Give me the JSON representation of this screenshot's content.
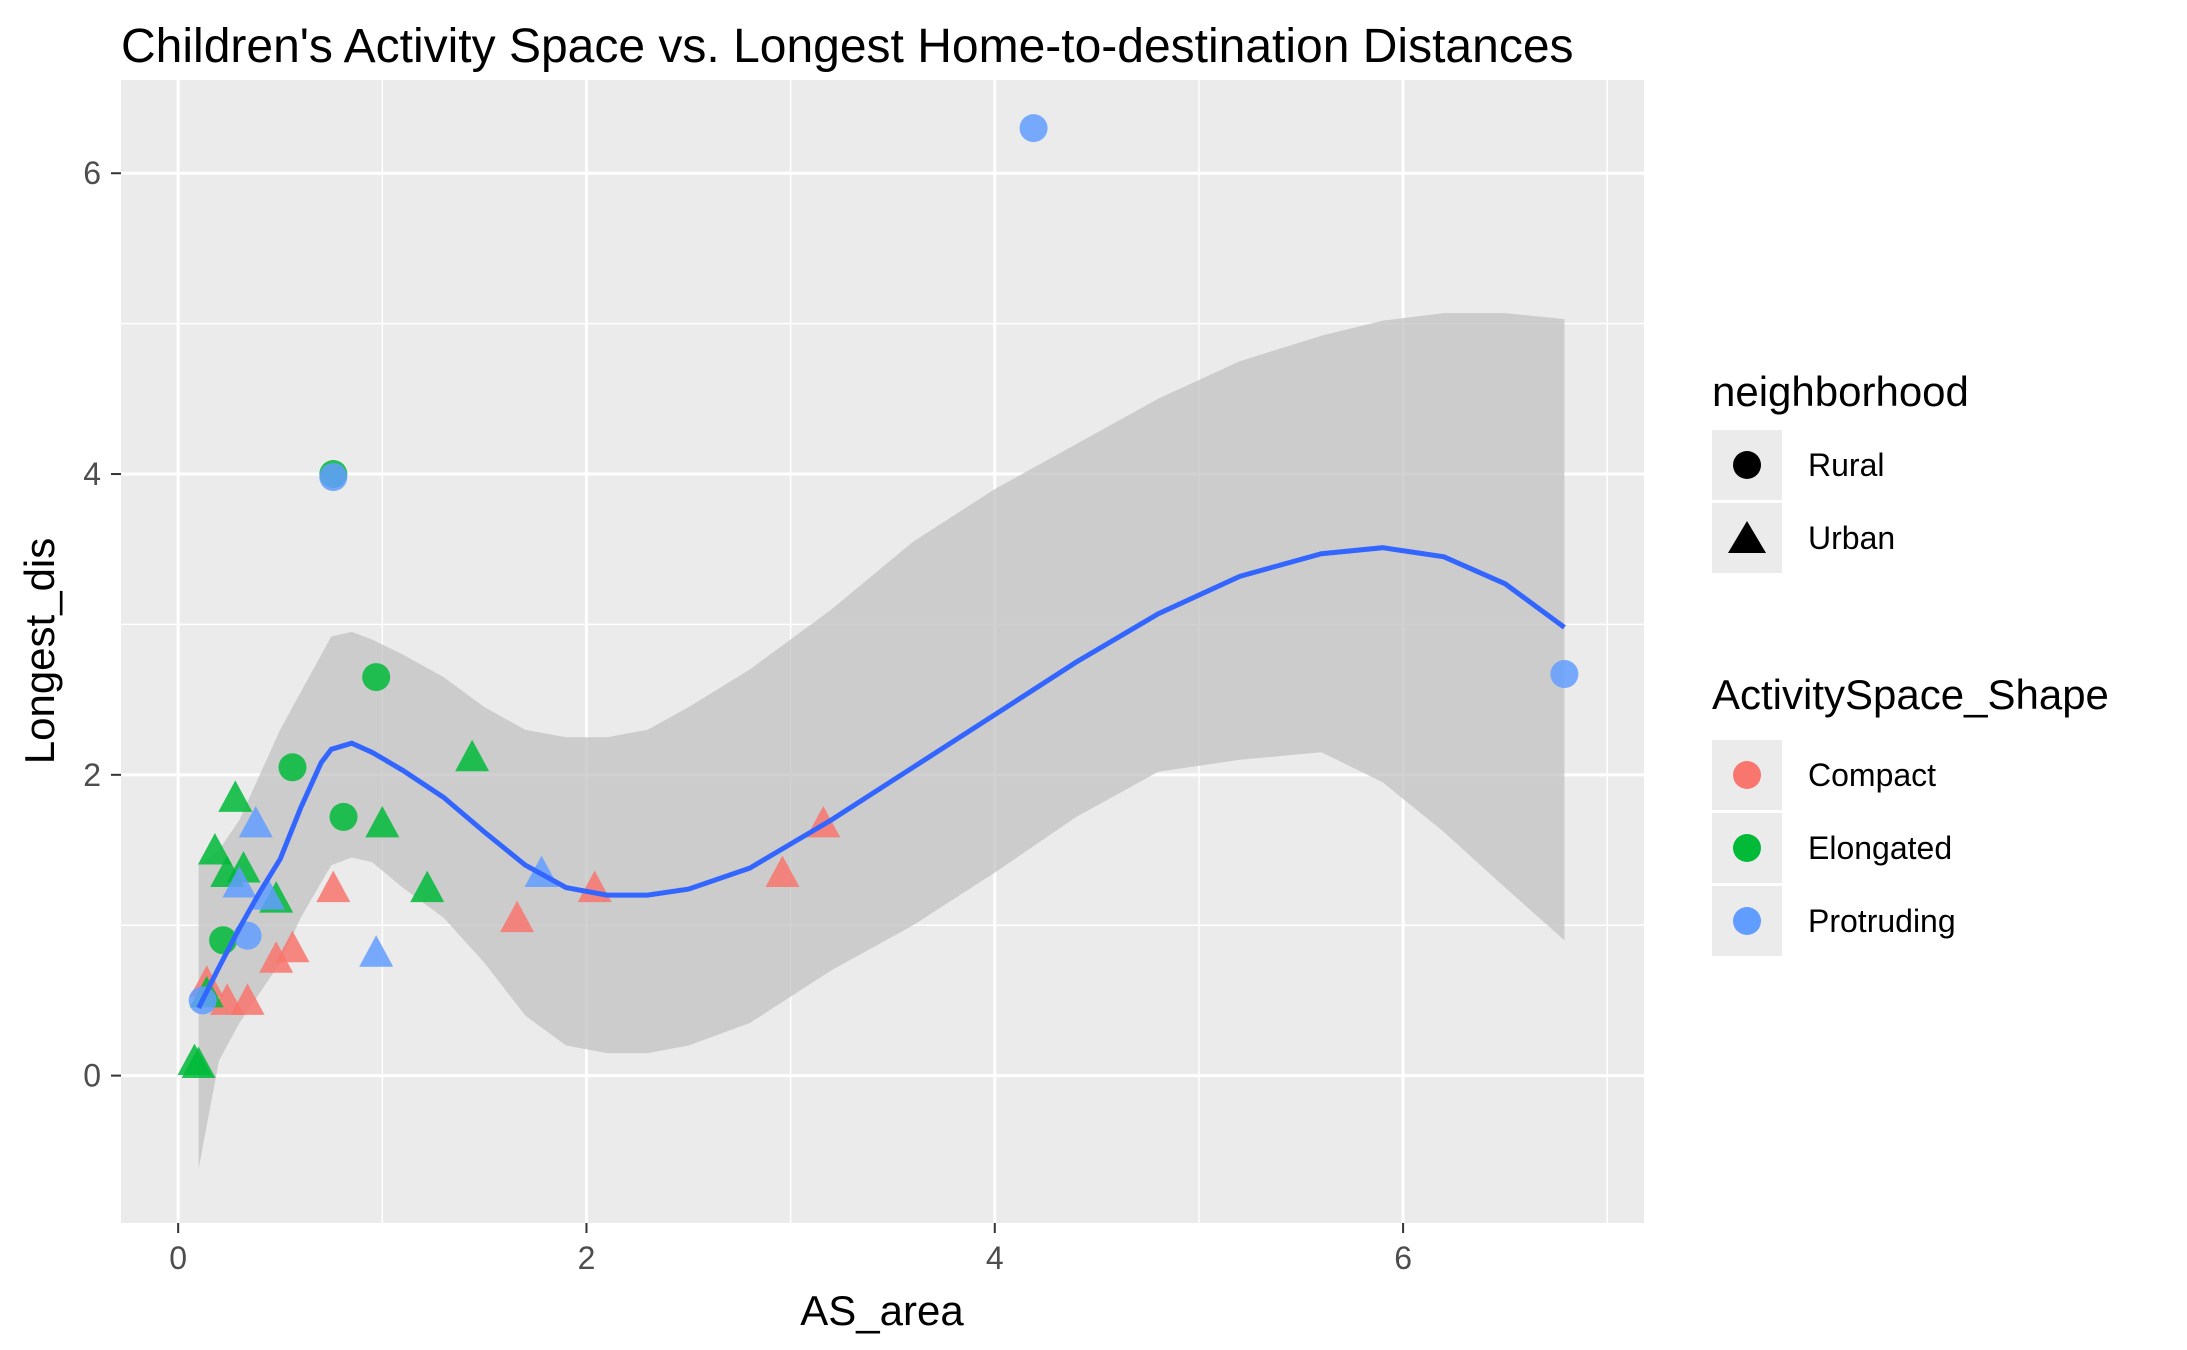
{
  "chart_data": {
    "type": "scatter",
    "title": "Children's Activity Space vs. Longest Home-to-destination Distances",
    "xlabel": "AS_area",
    "ylabel": "Longest_dis",
    "xlim": [
      -0.28,
      7.18
    ],
    "ylim": [
      -0.98,
      6.62
    ],
    "x_ticks": [
      0,
      2,
      4,
      6
    ],
    "y_ticks": [
      0,
      2,
      4,
      6
    ],
    "x_tick_labels": [
      "0",
      "2",
      "4",
      "6"
    ],
    "y_tick_labels": [
      "0",
      "2",
      "4",
      "6"
    ],
    "grid": true,
    "background_color": "#ebebeb",
    "legend_position": "right",
    "legends": [
      {
        "title": "neighborhood",
        "entries": [
          {
            "label": "Rural",
            "shape": "circle"
          },
          {
            "label": "Urban",
            "shape": "triangle"
          }
        ]
      },
      {
        "title": "ActivitySpace_Shape",
        "entries": [
          {
            "label": "Compact",
            "color": "#f8766d"
          },
          {
            "label": "Elongated",
            "color": "#00ba38"
          },
          {
            "label": "Protruding",
            "color": "#619cff"
          }
        ]
      }
    ],
    "colors": {
      "Compact": "#f8766d",
      "Elongated": "#00ba38",
      "Protruding": "#619cff",
      "smooth": "#3366ff",
      "ribbon": "#bfbfbf"
    },
    "series": [
      {
        "shape": "Compact",
        "neighborhood": "Urban",
        "x": [
          0.14,
          0.24,
          0.34,
          0.48,
          0.56,
          0.76,
          1.66,
          2.04,
          2.96,
          3.16
        ],
        "y": [
          0.62,
          0.5,
          0.5,
          0.78,
          0.85,
          1.25,
          1.05,
          1.25,
          1.35,
          1.68
        ]
      },
      {
        "shape": "Elongated",
        "neighborhood": "Rural",
        "x": [
          0.22,
          0.56,
          0.76,
          0.81,
          0.97
        ],
        "y": [
          0.9,
          2.05,
          4.0,
          1.72,
          2.65
        ]
      },
      {
        "shape": "Elongated",
        "neighborhood": "Urban",
        "x": [
          0.08,
          0.1,
          0.14,
          0.18,
          0.24,
          0.28,
          0.32,
          0.48,
          1.0,
          1.22,
          1.44
        ],
        "y": [
          0.1,
          0.08,
          0.55,
          1.5,
          1.35,
          1.85,
          1.38,
          1.18,
          1.68,
          1.25,
          2.12
        ]
      },
      {
        "shape": "Protruding",
        "neighborhood": "Rural",
        "x": [
          0.12,
          0.34,
          0.76,
          4.19,
          6.79
        ],
        "y": [
          0.5,
          0.93,
          3.98,
          6.3,
          2.67
        ]
      },
      {
        "shape": "Protruding",
        "neighborhood": "Urban",
        "x": [
          0.3,
          0.38,
          0.44,
          0.97,
          1.78
        ],
        "y": [
          1.28,
          1.68,
          1.2,
          0.82,
          1.35
        ]
      }
    ],
    "smooth_line": {
      "x": [
        0.1,
        0.2,
        0.3,
        0.4,
        0.5,
        0.6,
        0.7,
        0.75,
        0.85,
        0.95,
        1.1,
        1.3,
        1.5,
        1.7,
        1.9,
        2.1,
        2.3,
        2.5,
        2.8,
        3.2,
        3.6,
        4.0,
        4.4,
        4.8,
        5.2,
        5.6,
        5.9,
        6.2,
        6.5,
        6.79
      ],
      "y": [
        0.45,
        0.72,
        0.98,
        1.22,
        1.44,
        1.78,
        2.08,
        2.17,
        2.21,
        2.15,
        2.03,
        1.85,
        1.62,
        1.4,
        1.25,
        1.2,
        1.2,
        1.24,
        1.38,
        1.7,
        2.05,
        2.4,
        2.75,
        3.07,
        3.32,
        3.47,
        3.51,
        3.45,
        3.27,
        2.98
      ]
    },
    "confidence_band": {
      "x": [
        0.1,
        0.2,
        0.3,
        0.4,
        0.5,
        0.6,
        0.75,
        0.85,
        0.95,
        1.1,
        1.3,
        1.5,
        1.7,
        1.9,
        2.1,
        2.3,
        2.5,
        2.8,
        3.2,
        3.6,
        4.0,
        4.4,
        4.8,
        5.2,
        5.6,
        5.9,
        6.2,
        6.5,
        6.79
      ],
      "upper": [
        1.4,
        1.5,
        1.7,
        2.0,
        2.3,
        2.55,
        2.92,
        2.95,
        2.9,
        2.8,
        2.65,
        2.45,
        2.3,
        2.25,
        2.25,
        2.3,
        2.45,
        2.7,
        3.1,
        3.55,
        3.9,
        4.2,
        4.5,
        4.75,
        4.92,
        5.02,
        5.07,
        5.07,
        5.03
      ],
      "lower": [
        -0.62,
        0.1,
        0.35,
        0.55,
        0.75,
        1.05,
        1.4,
        1.45,
        1.42,
        1.25,
        1.05,
        0.75,
        0.4,
        0.2,
        0.15,
        0.15,
        0.2,
        0.35,
        0.7,
        1.0,
        1.35,
        1.72,
        2.02,
        2.1,
        2.15,
        1.95,
        1.62,
        1.25,
        0.9
      ]
    }
  }
}
